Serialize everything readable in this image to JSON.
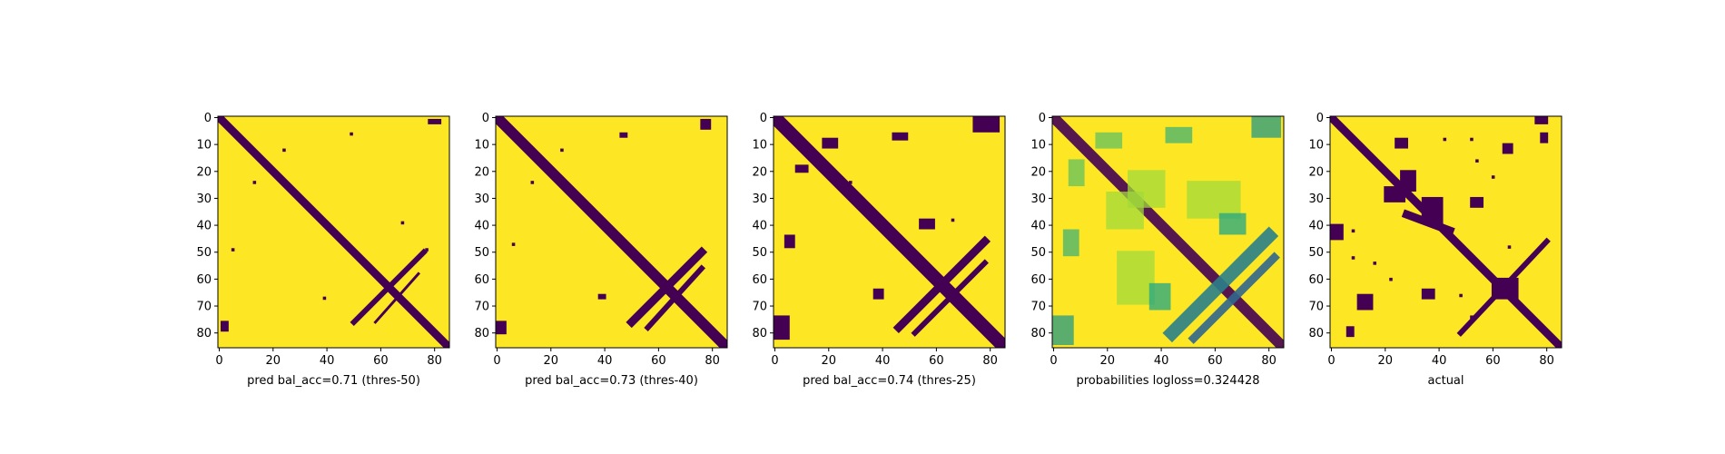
{
  "figure": {
    "colors": {
      "background": "#fde725",
      "foreground": "#440154",
      "mid_green": "#21a585",
      "mid_blue": "#31688e",
      "light_green": "#a0da39"
    }
  },
  "chart_data": [
    {
      "type": "heatmap",
      "title": "",
      "xlabel": "pred bal_acc=0.71 (thres-50)",
      "ylabel": "",
      "xlim": [
        0,
        85
      ],
      "ylim": [
        85,
        0
      ],
      "xticks": [
        0,
        20,
        40,
        60,
        80
      ],
      "yticks": [
        0,
        10,
        20,
        30,
        40,
        50,
        60,
        70,
        80
      ],
      "colormap": "viridis (binary)",
      "diagonal_width": 3,
      "value_note": "binary contact map; purple = predicted contact (1), yellow = 0",
      "features": [
        {
          "kind": "band",
          "from": [
            0,
            0
          ],
          "to": [
            85,
            85
          ],
          "width": 3
        },
        {
          "kind": "band",
          "from": [
            50,
            76
          ],
          "to": [
            76,
            50
          ],
          "width": 2
        },
        {
          "kind": "band",
          "from": [
            58,
            76
          ],
          "to": [
            74,
            58
          ],
          "width": 1
        },
        {
          "kind": "blob",
          "x": 78,
          "y": 1,
          "w": 5,
          "h": 2
        },
        {
          "kind": "blob",
          "x": 1,
          "y": 76,
          "w": 3,
          "h": 4
        },
        {
          "kind": "dot",
          "x": 49,
          "y": 6
        },
        {
          "kind": "dot",
          "x": 24,
          "y": 12
        },
        {
          "kind": "dot",
          "x": 13,
          "y": 24
        },
        {
          "kind": "dot",
          "x": 68,
          "y": 39
        },
        {
          "kind": "dot",
          "x": 5,
          "y": 49
        },
        {
          "kind": "dot",
          "x": 39,
          "y": 67
        },
        {
          "kind": "dot",
          "x": 77,
          "y": 49
        }
      ]
    },
    {
      "type": "heatmap",
      "title": "",
      "xlabel": "pred bal_acc=0.73 (thres-40)",
      "ylabel": "",
      "xlim": [
        0,
        85
      ],
      "ylim": [
        85,
        0
      ],
      "xticks": [
        0,
        20,
        40,
        60,
        80
      ],
      "yticks": [
        0,
        10,
        20,
        30,
        40,
        50,
        60,
        70,
        80
      ],
      "colormap": "viridis (binary)",
      "value_note": "binary contact map; purple = predicted contact (1), yellow = 0",
      "features": [
        {
          "kind": "band",
          "from": [
            0,
            0
          ],
          "to": [
            85,
            85
          ],
          "width": 4
        },
        {
          "kind": "band",
          "from": [
            50,
            76
          ],
          "to": [
            76,
            50
          ],
          "width": 3
        },
        {
          "kind": "band",
          "from": [
            56,
            78
          ],
          "to": [
            76,
            56
          ],
          "width": 2
        },
        {
          "kind": "blob",
          "x": 76,
          "y": 1,
          "w": 4,
          "h": 4
        },
        {
          "kind": "blob",
          "x": 0,
          "y": 76,
          "w": 4,
          "h": 5
        },
        {
          "kind": "blob",
          "x": 38,
          "y": 66,
          "w": 3,
          "h": 2
        },
        {
          "kind": "blob",
          "x": 46,
          "y": 6,
          "w": 3,
          "h": 2
        },
        {
          "kind": "dot",
          "x": 24,
          "y": 12
        },
        {
          "kind": "dot",
          "x": 13,
          "y": 24
        },
        {
          "kind": "dot",
          "x": 6,
          "y": 47
        }
      ]
    },
    {
      "type": "heatmap",
      "title": "",
      "xlabel": "pred bal_acc=0.74 (thres-25)",
      "ylabel": "",
      "xlim": [
        0,
        85
      ],
      "ylim": [
        85,
        0
      ],
      "xticks": [
        0,
        20,
        40,
        60,
        80
      ],
      "yticks": [
        0,
        10,
        20,
        30,
        40,
        50,
        60,
        70,
        80
      ],
      "colormap": "viridis (binary)",
      "value_note": "binary contact map; purple = predicted contact (1), yellow = 0",
      "features": [
        {
          "kind": "band",
          "from": [
            0,
            0
          ],
          "to": [
            85,
            85
          ],
          "width": 5
        },
        {
          "kind": "band",
          "from": [
            46,
            78
          ],
          "to": [
            78,
            46
          ],
          "width": 3
        },
        {
          "kind": "band",
          "from": [
            52,
            80
          ],
          "to": [
            78,
            54
          ],
          "width": 2
        },
        {
          "kind": "blob",
          "x": 74,
          "y": 0,
          "w": 10,
          "h": 6
        },
        {
          "kind": "blob",
          "x": 0,
          "y": 74,
          "w": 6,
          "h": 9
        },
        {
          "kind": "blob",
          "x": 37,
          "y": 64,
          "w": 4,
          "h": 4
        },
        {
          "kind": "blob",
          "x": 44,
          "y": 6,
          "w": 6,
          "h": 3
        },
        {
          "kind": "blob",
          "x": 18,
          "y": 8,
          "w": 6,
          "h": 4
        },
        {
          "kind": "blob",
          "x": 8,
          "y": 18,
          "w": 5,
          "h": 3
        },
        {
          "kind": "blob",
          "x": 54,
          "y": 38,
          "w": 6,
          "h": 4
        },
        {
          "kind": "blob",
          "x": 4,
          "y": 44,
          "w": 4,
          "h": 5
        },
        {
          "kind": "dot",
          "x": 66,
          "y": 38
        },
        {
          "kind": "dot",
          "x": 28,
          "y": 24
        }
      ]
    },
    {
      "type": "heatmap",
      "title": "",
      "xlabel": "probabilities logloss=0.324428",
      "ylabel": "",
      "xlim": [
        0,
        85
      ],
      "ylim": [
        85,
        0
      ],
      "xticks": [
        0,
        20,
        40,
        60,
        80
      ],
      "yticks": [
        0,
        10,
        20,
        30,
        40,
        50,
        60,
        70,
        80
      ],
      "colormap": "viridis (continuous probabilities)",
      "value_note": "predicted contact probabilities; dark = high, yellow = low",
      "features": [
        {
          "kind": "band",
          "from": [
            0,
            0
          ],
          "to": [
            85,
            85
          ],
          "width": 4,
          "level": 1.0
        },
        {
          "kind": "band",
          "from": [
            44,
            80
          ],
          "to": [
            80,
            44
          ],
          "width": 5,
          "level": 0.6
        },
        {
          "kind": "band",
          "from": [
            52,
            82
          ],
          "to": [
            82,
            52
          ],
          "width": 3,
          "level": 0.7
        },
        {
          "kind": "blob",
          "x": 74,
          "y": 0,
          "w": 11,
          "h": 8,
          "level": 0.5
        },
        {
          "kind": "blob",
          "x": 0,
          "y": 74,
          "w": 8,
          "h": 11,
          "level": 0.5
        },
        {
          "kind": "blob",
          "x": 42,
          "y": 4,
          "w": 10,
          "h": 6,
          "level": 0.4
        },
        {
          "kind": "blob",
          "x": 4,
          "y": 42,
          "w": 6,
          "h": 10,
          "level": 0.4
        },
        {
          "kind": "blob",
          "x": 16,
          "y": 6,
          "w": 10,
          "h": 6,
          "level": 0.35
        },
        {
          "kind": "blob",
          "x": 6,
          "y": 16,
          "w": 6,
          "h": 10,
          "level": 0.35
        },
        {
          "kind": "blob",
          "x": 28,
          "y": 20,
          "w": 14,
          "h": 14,
          "level": 0.25
        },
        {
          "kind": "blob",
          "x": 20,
          "y": 28,
          "w": 14,
          "h": 14,
          "level": 0.25
        },
        {
          "kind": "blob",
          "x": 50,
          "y": 24,
          "w": 20,
          "h": 14,
          "level": 0.25
        },
        {
          "kind": "blob",
          "x": 24,
          "y": 50,
          "w": 14,
          "h": 20,
          "level": 0.25
        },
        {
          "kind": "blob",
          "x": 36,
          "y": 62,
          "w": 8,
          "h": 10,
          "level": 0.45
        },
        {
          "kind": "blob",
          "x": 62,
          "y": 36,
          "w": 10,
          "h": 8,
          "level": 0.45
        }
      ]
    },
    {
      "type": "heatmap",
      "title": "",
      "xlabel": "actual",
      "ylabel": "",
      "xlim": [
        0,
        85
      ],
      "ylim": [
        85,
        0
      ],
      "xticks": [
        0,
        20,
        40,
        60,
        80
      ],
      "yticks": [
        0,
        10,
        20,
        30,
        40,
        50,
        60,
        70,
        80
      ],
      "colormap": "viridis (binary)",
      "value_note": "binary ground-truth contact map; purple = contact (1), yellow = 0",
      "features": [
        {
          "kind": "band",
          "from": [
            0,
            0
          ],
          "to": [
            85,
            85
          ],
          "width": 3
        },
        {
          "kind": "band",
          "from": [
            48,
            80
          ],
          "to": [
            80,
            46
          ],
          "width": 2
        },
        {
          "kind": "band",
          "from": [
            28,
            36
          ],
          "to": [
            44,
            42
          ],
          "width": 3
        },
        {
          "kind": "blob",
          "x": 26,
          "y": 20,
          "w": 6,
          "h": 8
        },
        {
          "kind": "blob",
          "x": 20,
          "y": 26,
          "w": 8,
          "h": 6
        },
        {
          "kind": "blob",
          "x": 34,
          "y": 30,
          "w": 8,
          "h": 10
        },
        {
          "kind": "blob",
          "x": 60,
          "y": 60,
          "w": 10,
          "h": 8
        },
        {
          "kind": "blob",
          "x": 0,
          "y": 40,
          "w": 5,
          "h": 6
        },
        {
          "kind": "blob",
          "x": 10,
          "y": 66,
          "w": 6,
          "h": 6
        },
        {
          "kind": "blob",
          "x": 76,
          "y": 0,
          "w": 5,
          "h": 3
        },
        {
          "kind": "blob",
          "x": 24,
          "y": 8,
          "w": 5,
          "h": 4
        },
        {
          "kind": "blob",
          "x": 52,
          "y": 30,
          "w": 5,
          "h": 4
        },
        {
          "kind": "blob",
          "x": 64,
          "y": 10,
          "w": 4,
          "h": 4
        },
        {
          "kind": "blob",
          "x": 78,
          "y": 6,
          "w": 3,
          "h": 4
        },
        {
          "kind": "blob",
          "x": 34,
          "y": 64,
          "w": 5,
          "h": 4
        },
        {
          "kind": "blob",
          "x": 6,
          "y": 78,
          "w": 3,
          "h": 4
        },
        {
          "kind": "dot",
          "x": 42,
          "y": 8
        },
        {
          "kind": "dot",
          "x": 52,
          "y": 8
        },
        {
          "kind": "dot",
          "x": 8,
          "y": 42
        },
        {
          "kind": "dot",
          "x": 8,
          "y": 52
        },
        {
          "kind": "dot",
          "x": 16,
          "y": 54
        },
        {
          "kind": "dot",
          "x": 54,
          "y": 16
        },
        {
          "kind": "dot",
          "x": 60,
          "y": 22
        },
        {
          "kind": "dot",
          "x": 22,
          "y": 60
        },
        {
          "kind": "dot",
          "x": 66,
          "y": 48
        },
        {
          "kind": "dot",
          "x": 48,
          "y": 66
        },
        {
          "kind": "dot",
          "x": 74,
          "y": 52
        },
        {
          "kind": "dot",
          "x": 52,
          "y": 74
        }
      ]
    }
  ]
}
